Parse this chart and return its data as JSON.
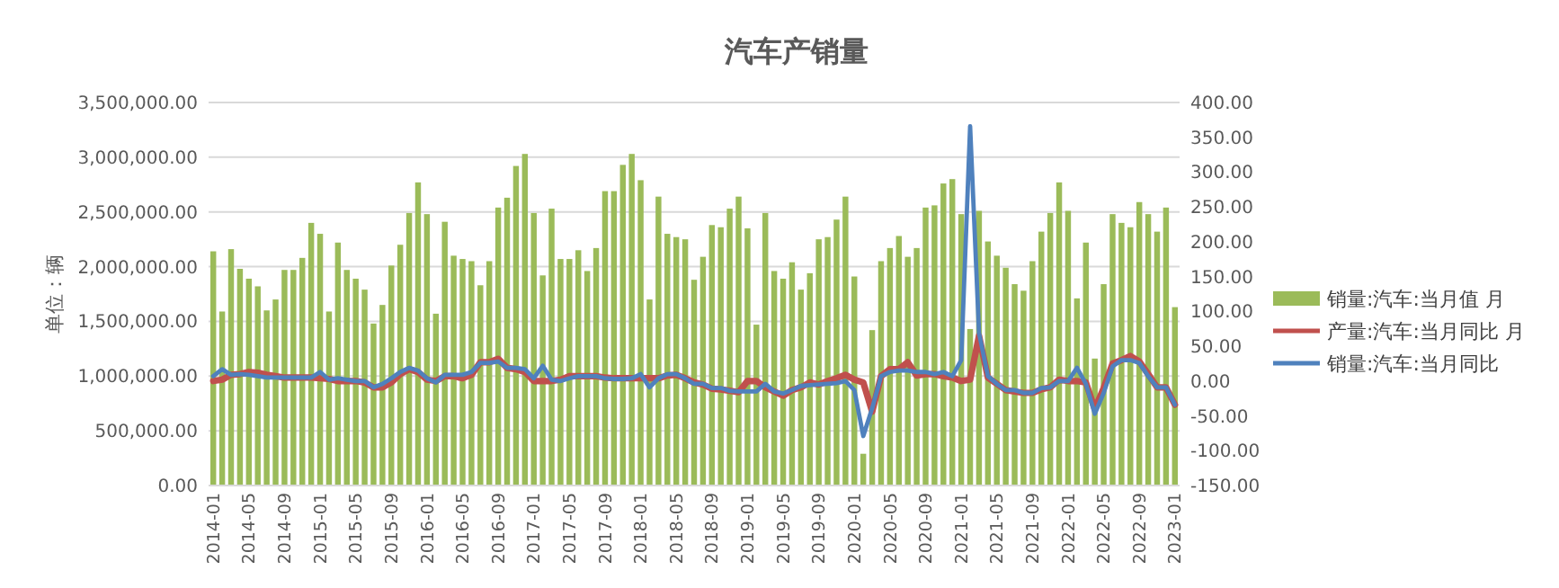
{
  "chart_data": {
    "type": "bar",
    "title": "汽车产销量",
    "ylabel": "单位：辆",
    "categories": [
      "2014-01",
      null,
      null,
      null,
      "2014-05",
      null,
      null,
      null,
      "2014-09",
      null,
      null,
      null,
      "2015-01",
      null,
      null,
      null,
      "2015-05",
      null,
      null,
      null,
      "2015-09",
      null,
      null,
      null,
      "2016-01",
      null,
      null,
      null,
      "2016-05",
      null,
      null,
      null,
      "2016-09",
      null,
      null,
      null,
      "2017-01",
      null,
      null,
      null,
      "2017-05",
      null,
      null,
      null,
      "2017-09",
      null,
      null,
      null,
      "2018-01",
      null,
      null,
      null,
      "2018-05",
      null,
      null,
      null,
      "2018-09",
      null,
      null,
      null,
      "2019-01",
      null,
      null,
      null,
      "2019-05",
      null,
      null,
      null,
      "2019-09",
      null,
      null,
      null,
      "2020-01",
      null,
      null,
      null,
      "2020-05",
      null,
      null,
      null,
      "2020-09",
      null,
      null,
      null,
      "2021-01",
      null,
      null,
      null,
      "2021-05",
      null,
      null,
      null,
      "2021-09",
      null,
      null,
      null,
      "2022-01",
      null,
      null,
      null,
      "2022-05",
      null,
      null,
      null,
      "2022-09",
      null,
      null,
      null,
      "2023-01"
    ],
    "series": [
      {
        "name": "销量:汽车:当月值 月",
        "color": "#9bbb59",
        "values": [
          2140000,
          1590000,
          2160000,
          1980000,
          1890000,
          1820000,
          1600000,
          1700000,
          1970000,
          1970000,
          2080000,
          2400000,
          2300000,
          1590000,
          2220000,
          1970000,
          1890000,
          1790000,
          1480000,
          1650000,
          2010000,
          2200000,
          2490000,
          2770000,
          2480000,
          1570000,
          2410000,
          2100000,
          2070000,
          2050000,
          1830000,
          2050000,
          2540000,
          2630000,
          2920000,
          3030000,
          2490000,
          1920000,
          2530000,
          2070000,
          2070000,
          2150000,
          1960000,
          2170000,
          2690000,
          2690000,
          2930000,
          3030000,
          2790000,
          1700000,
          2640000,
          2300000,
          2270000,
          2250000,
          1880000,
          2090000,
          2380000,
          2360000,
          2530000,
          2640000,
          2350000,
          1470000,
          2490000,
          1960000,
          1890000,
          2040000,
          1790000,
          1940000,
          2250000,
          2270000,
          2430000,
          2640000,
          1910000,
          290000,
          1420000,
          2050000,
          2170000,
          2280000,
          2090000,
          2170000,
          2540000,
          2560000,
          2760000,
          2800000,
          2480000,
          1430000,
          2510000,
          2230000,
          2100000,
          1990000,
          1840000,
          1780000,
          2050000,
          2320000,
          2490000,
          2770000,
          2510000,
          1710000,
          2220000,
          1160000,
          1840000,
          2480000,
          2400000,
          2360000,
          2590000,
          2480000,
          2320000,
          2540000,
          1630000
        ]
      },
      {
        "name": "产量:汽车:当月同比 月",
        "type": "line",
        "axis": "y2",
        "color": "#c0504d",
        "values": [
          0,
          2,
          9,
          10,
          13,
          12,
          9,
          7,
          5,
          5,
          5,
          5,
          4,
          3,
          0,
          0,
          0,
          -2,
          -9,
          -9,
          -2,
          10,
          17,
          13,
          2,
          0,
          7,
          7,
          4,
          9,
          27,
          27,
          32,
          19,
          17,
          13,
          0,
          0,
          0,
          2,
          7,
          7,
          7,
          7,
          5,
          4,
          4,
          4,
          4,
          4,
          4,
          8,
          9,
          4,
          -2,
          -5,
          -11,
          -12,
          -14,
          -16,
          0,
          0,
          -9,
          -15,
          -21,
          -13,
          -9,
          -2,
          -5,
          0,
          4,
          9,
          2,
          -2,
          -44,
          7,
          17,
          17,
          27,
          8,
          10,
          10,
          7,
          5,
          0,
          2,
          65,
          5,
          -4,
          -13,
          -15,
          -17,
          -17,
          -12,
          -9,
          2,
          0,
          0,
          -2,
          -40,
          -10,
          25,
          30,
          36,
          28,
          10,
          -9,
          -9,
          -34
        ]
      },
      {
        "name": "销量:汽车:当月同比",
        "type": "line",
        "axis": "y2",
        "color": "#4f81bd",
        "values": [
          7,
          17,
          9,
          10,
          9,
          7,
          5,
          5,
          5,
          5,
          5,
          5,
          13,
          2,
          4,
          2,
          0,
          0,
          -9,
          -4,
          4,
          13,
          19,
          15,
          4,
          -2,
          9,
          9,
          9,
          13,
          26,
          26,
          28,
          19,
          19,
          17,
          4,
          22,
          2,
          0,
          4,
          7,
          7,
          7,
          4,
          3,
          3,
          4,
          10,
          -9,
          4,
          10,
          10,
          4,
          -4,
          -4,
          -10,
          -10,
          -14,
          -15,
          -15,
          -15,
          -4,
          -15,
          -18,
          -13,
          -7,
          -6,
          -5,
          -4,
          -3,
          0,
          -13,
          -79,
          -39,
          7,
          13,
          15,
          15,
          13,
          13,
          10,
          13,
          7,
          30,
          366,
          69,
          7,
          -4,
          -13,
          -13,
          -17,
          -17,
          -10,
          -9,
          0,
          0,
          19,
          -4,
          -47,
          -17,
          21,
          30,
          30,
          26,
          7,
          -9,
          -9,
          -34
        ]
      }
    ],
    "ylim": [
      0,
      3500000
    ],
    "yticks": [
      {
        "value": 0,
        "label": "0.00"
      },
      {
        "value": 500000,
        "label": "500,000.00"
      },
      {
        "value": 1000000,
        "label": "1,000,000.00"
      },
      {
        "value": 1500000,
        "label": "1,500,000.00"
      },
      {
        "value": 2000000,
        "label": "2,000,000.00"
      },
      {
        "value": 2500000,
        "label": "2,500,000.00"
      },
      {
        "value": 3000000,
        "label": "3,000,000.00"
      },
      {
        "value": 3500000,
        "label": "3,500,000.00"
      }
    ],
    "y2lim": [
      -150,
      400
    ],
    "y2ticks": [
      {
        "value": -150,
        "label": "-150.00"
      },
      {
        "value": -100,
        "label": "-100.00"
      },
      {
        "value": -50,
        "label": "-50.00"
      },
      {
        "value": 0,
        "label": "0.00"
      },
      {
        "value": 50,
        "label": "50.00"
      },
      {
        "value": 100,
        "label": "100.00"
      },
      {
        "value": 150,
        "label": "150.00"
      },
      {
        "value": 200,
        "label": "200.00"
      },
      {
        "value": 250,
        "label": "250.00"
      },
      {
        "value": 300,
        "label": "300.00"
      },
      {
        "value": 350,
        "label": "350.00"
      },
      {
        "value": 400,
        "label": "400.00"
      }
    ],
    "grid": "y",
    "legend": "right"
  }
}
